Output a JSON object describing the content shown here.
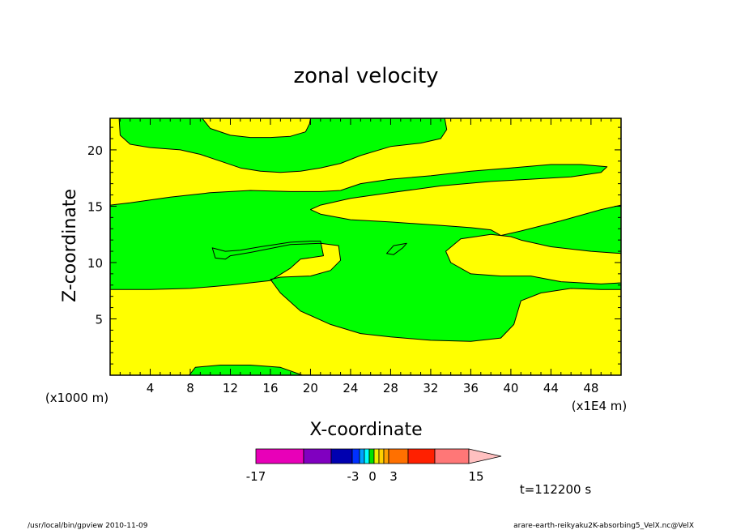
{
  "chart_data": {
    "type": "contour",
    "title": "zonal velocity",
    "xlabel": "X-coordinate",
    "ylabel": "Z-coordinate",
    "x_unit_note": "(x1E4 m)",
    "y_unit_note": "(x1000 m)",
    "xlim": [
      0,
      51
    ],
    "ylim": [
      0,
      22.8
    ],
    "x_ticks": [
      4,
      8,
      12,
      16,
      20,
      24,
      28,
      32,
      36,
      40,
      44,
      48
    ],
    "y_ticks": [
      5,
      10,
      15,
      20
    ],
    "colors": {
      "positive_fill": "#ffff00",
      "negative_fill": "#00ff00",
      "contour_line": "#000000"
    },
    "regions": [
      {
        "sign": "negative",
        "points": [
          [
            0.9,
            22.8
          ],
          [
            1.0,
            21.3
          ],
          [
            2,
            20.5
          ],
          [
            4,
            20.2
          ],
          [
            7,
            20.0
          ],
          [
            9,
            19.6
          ],
          [
            11,
            19.0
          ],
          [
            13,
            18.4
          ],
          [
            15,
            18.1
          ],
          [
            17,
            18.0
          ],
          [
            19,
            18.1
          ],
          [
            21,
            18.4
          ],
          [
            23,
            18.8
          ],
          [
            25,
            19.5
          ],
          [
            28,
            20.3
          ],
          [
            31,
            20.6
          ],
          [
            33,
            21.0
          ],
          [
            33.6,
            21.8
          ],
          [
            33.4,
            22.8
          ]
        ]
      },
      {
        "sign": "positive",
        "points": [
          [
            9.2,
            22.8
          ],
          [
            10,
            21.9
          ],
          [
            12,
            21.3
          ],
          [
            14,
            21.1
          ],
          [
            16,
            21.1
          ],
          [
            18,
            21.2
          ],
          [
            19.5,
            21.6
          ],
          [
            19.9,
            22.3
          ],
          [
            20,
            22.8
          ]
        ]
      },
      {
        "sign": "negative",
        "points": [
          [
            0,
            15.1
          ],
          [
            2,
            15.3
          ],
          [
            6,
            15.8
          ],
          [
            10,
            16.2
          ],
          [
            14,
            16.4
          ],
          [
            18,
            16.3
          ],
          [
            21,
            16.3
          ],
          [
            23,
            16.4
          ],
          [
            25,
            17.0
          ],
          [
            28,
            17.4
          ],
          [
            32,
            17.7
          ],
          [
            36,
            18.1
          ],
          [
            40,
            18.4
          ],
          [
            44,
            18.7
          ],
          [
            47,
            18.7
          ],
          [
            49.6,
            18.5
          ],
          [
            49,
            18.0
          ],
          [
            46,
            17.6
          ],
          [
            42,
            17.4
          ],
          [
            38,
            17.2
          ],
          [
            33,
            16.8
          ],
          [
            28,
            16.2
          ],
          [
            24,
            15.7
          ],
          [
            21,
            15.1
          ],
          [
            20,
            14.7
          ],
          [
            21,
            14.3
          ],
          [
            24,
            13.8
          ],
          [
            28,
            13.6
          ],
          [
            33,
            13.3
          ],
          [
            36,
            13.1
          ],
          [
            38,
            12.9
          ],
          [
            39,
            12.4
          ],
          [
            41,
            12.8
          ],
          [
            45,
            13.7
          ],
          [
            49,
            14.7
          ],
          [
            51,
            15.1
          ],
          [
            51,
            7.6
          ],
          [
            49,
            7.6
          ],
          [
            46,
            7.7
          ],
          [
            43,
            7.3
          ],
          [
            41,
            6.6
          ],
          [
            40.3,
            4.5
          ],
          [
            39,
            3.3
          ],
          [
            36,
            3.0
          ],
          [
            32,
            3.1
          ],
          [
            28,
            3.4
          ],
          [
            25,
            3.7
          ],
          [
            22,
            4.5
          ],
          [
            19,
            5.7
          ],
          [
            17,
            7.3
          ],
          [
            16,
            8.5
          ],
          [
            17,
            8.7
          ],
          [
            20,
            8.8
          ],
          [
            22,
            9.3
          ],
          [
            23,
            10.2
          ],
          [
            22.8,
            11.5
          ],
          [
            21,
            11.7
          ],
          [
            18,
            11.6
          ],
          [
            14,
            10.9
          ],
          [
            12,
            10.6
          ],
          [
            11.5,
            10.3
          ],
          [
            10.5,
            10.4
          ],
          [
            10.2,
            11.3
          ],
          [
            11.5,
            11.0
          ],
          [
            13,
            11.1
          ],
          [
            15,
            11.4
          ],
          [
            18,
            11.8
          ],
          [
            20,
            11.9
          ],
          [
            21,
            11.9
          ],
          [
            21.3,
            10.6
          ],
          [
            19,
            10.3
          ],
          [
            18,
            9.5
          ],
          [
            16,
            8.4
          ],
          [
            12,
            8.0
          ],
          [
            8,
            7.7
          ],
          [
            4,
            7.6
          ],
          [
            0,
            7.6
          ]
        ]
      },
      {
        "sign": "positive",
        "points": [
          [
            36,
            9.0
          ],
          [
            34,
            10.0
          ],
          [
            33.5,
            11.0
          ],
          [
            35,
            12.1
          ],
          [
            38,
            12.5
          ],
          [
            40,
            12.3
          ],
          [
            41,
            12.0
          ],
          [
            44,
            11.4
          ],
          [
            48,
            11.0
          ],
          [
            51,
            10.8
          ],
          [
            51,
            8.2
          ],
          [
            49,
            8.1
          ],
          [
            45,
            8.3
          ],
          [
            42,
            8.8
          ],
          [
            39,
            8.8
          ]
        ]
      },
      {
        "sign": "negative",
        "points": [
          [
            27.6,
            10.8
          ],
          [
            28.3,
            11.5
          ],
          [
            29.6,
            11.7
          ],
          [
            29.2,
            11.3
          ],
          [
            28.3,
            10.7
          ]
        ]
      },
      {
        "sign": "negative",
        "points": [
          [
            7.9,
            0
          ],
          [
            8.5,
            0.7
          ],
          [
            11,
            0.9
          ],
          [
            14,
            0.9
          ],
          [
            17,
            0.7
          ],
          [
            19.2,
            0
          ]
        ]
      }
    ],
    "colorbar": {
      "tick_labels": [
        "-17",
        "-3",
        "0",
        "3",
        "15"
      ],
      "colors": [
        "#e800b8",
        "#8000c0",
        "#0000b0",
        "#0030ff",
        "#00a0ff",
        "#00ffff",
        "#00e000",
        "#f0f000",
        "#ffd000",
        "#ffa000",
        "#ff7000",
        "#ff2000",
        "#ff7777",
        "#ffc0c0"
      ]
    },
    "time_label": "t=112200 s"
  },
  "footer": {
    "left": "/usr/local/bin/gpview   2010-11-09",
    "right": "arare-earth-reikyaku2K-absorbing5_VelX.nc@VelX"
  }
}
